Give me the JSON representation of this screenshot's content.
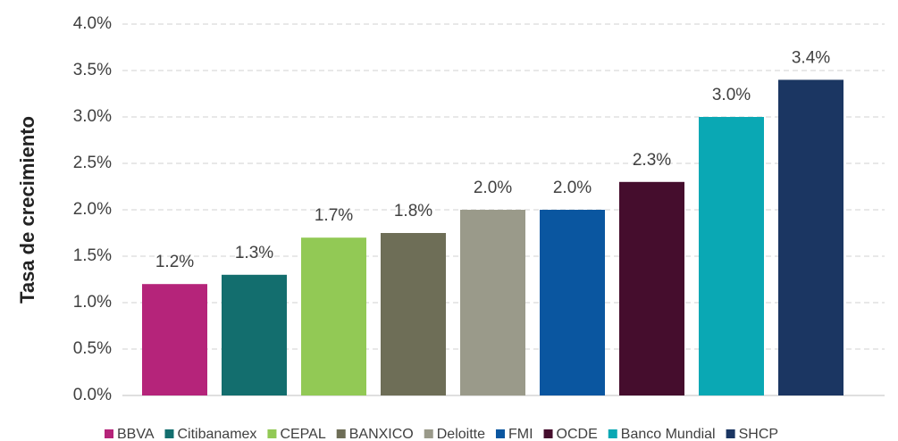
{
  "chart_data": {
    "type": "bar",
    "y_label": "Tasa de crecimiento",
    "categories": [
      "BBVA",
      "Citibanamex",
      "CEPAL",
      "BANXICO",
      "Deloitte",
      "FMI",
      "OCDE",
      "Banco Mundial",
      "SHCP"
    ],
    "values": [
      1.2,
      1.3,
      1.7,
      1.75,
      2.0,
      2.0,
      2.3,
      3.0,
      3.4
    ],
    "value_labels": [
      "1.2%",
      "1.3%",
      "1.7%",
      "1.8%",
      "2.0%",
      "2.0%",
      "2.3%",
      "3.0%",
      "3.4%"
    ],
    "colors": [
      "#b5247a",
      "#136e6e",
      "#92c955",
      "#6e6e57",
      "#9a9a8a",
      "#0a56a0",
      "#450d2d",
      "#0aa8b4",
      "#1b3662"
    ],
    "ylim": [
      0,
      4
    ],
    "yticks": [
      {
        "value": 0,
        "label": "0.0%"
      },
      {
        "value": 0.5,
        "label": "0.5%"
      },
      {
        "value": 1,
        "label": "1.0%"
      },
      {
        "value": 1.5,
        "label": "1.5%"
      },
      {
        "value": 2,
        "label": "2.0%"
      },
      {
        "value": 2.5,
        "label": "2.5%"
      },
      {
        "value": 3,
        "label": "3.0%"
      },
      {
        "value": 3.5,
        "label": "3.5%"
      },
      {
        "value": 4,
        "label": "4.0%"
      }
    ],
    "grid": true,
    "legend": "bottom"
  }
}
